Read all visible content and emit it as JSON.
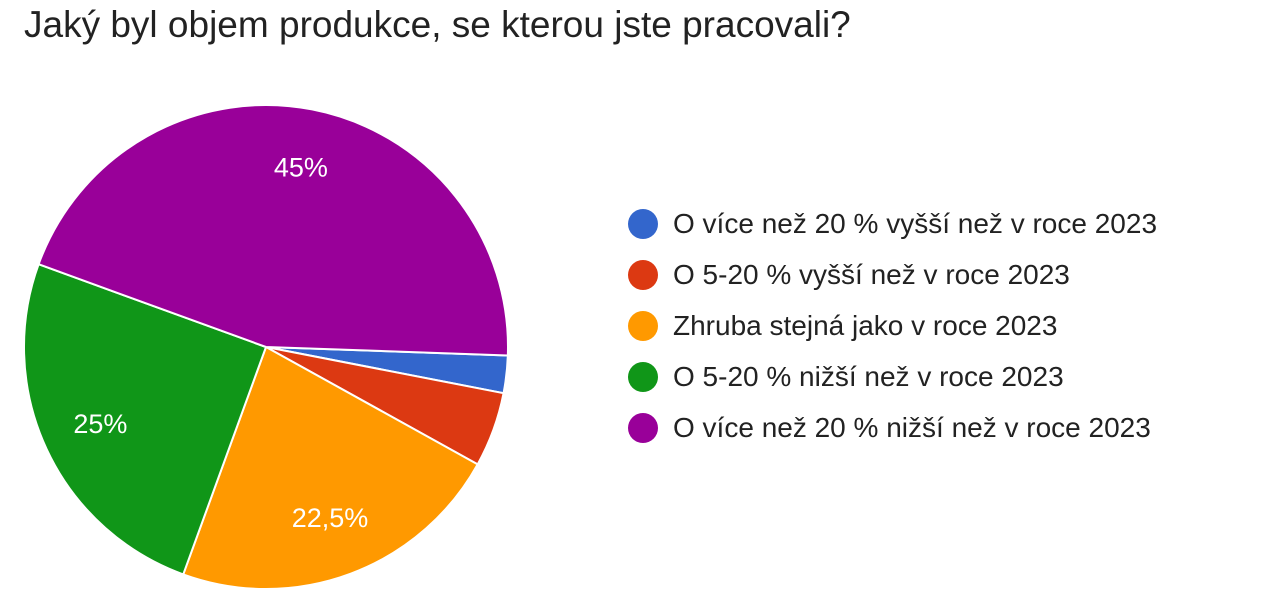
{
  "title": "Jaký byl objem produkce, se kterou jste pracovali?",
  "chart_data": {
    "type": "pie",
    "categories": [
      "O více než 20 % vyšší než v roce 2023",
      "O 5-20 % vyšší než v roce 2023",
      "Zhruba stejná jako v roce 2023",
      "O 5-20 % nižší než v roce 2023",
      "O více než 20 % nižší než v roce 2023"
    ],
    "values": [
      2.5,
      5,
      22.5,
      25,
      45
    ],
    "data_labels": [
      "",
      "",
      "22,5%",
      "25%",
      "45%"
    ],
    "colors": [
      "#3366cc",
      "#dc3912",
      "#ff9900",
      "#109618",
      "#990099"
    ],
    "legend": "right"
  }
}
